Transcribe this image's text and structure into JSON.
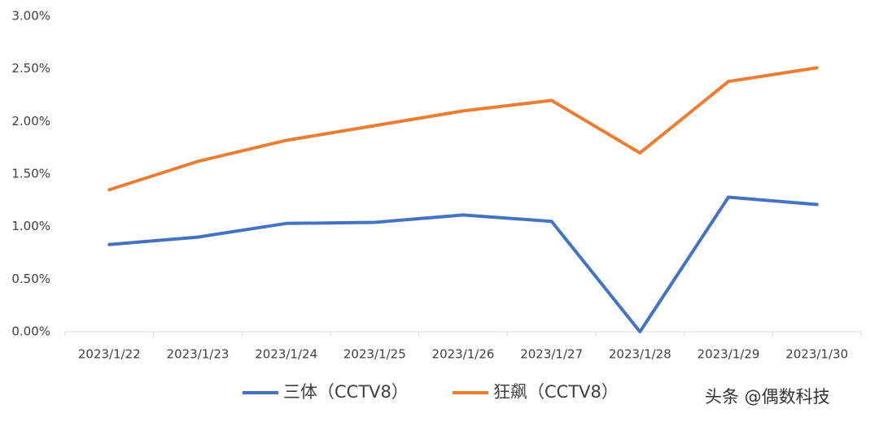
{
  "chart_data": {
    "type": "line",
    "categories": [
      "2023/1/22",
      "2023/1/23",
      "2023/1/24",
      "2023/1/25",
      "2023/1/26",
      "2023/1/27",
      "2023/1/28",
      "2023/1/29",
      "2023/1/30"
    ],
    "series": [
      {
        "name": "三体（CCTV8）",
        "color": "#4472c4",
        "values": [
          0.83,
          0.9,
          1.03,
          1.04,
          1.11,
          1.05,
          0,
          1.28,
          1.21
        ]
      },
      {
        "name": "狂飙（CCTV8）",
        "color": "#ed7d31",
        "values": [
          1.35,
          1.62,
          1.82,
          1.96,
          2.1,
          2.2,
          1.7,
          2.38,
          2.51
        ]
      }
    ],
    "ylim": [
      0,
      3
    ],
    "yticks": [
      {
        "value": 0,
        "label": "0.00%"
      },
      {
        "value": 0.5,
        "label": "0.50%"
      },
      {
        "value": 1,
        "label": "1.00%"
      },
      {
        "value": 1.5,
        "label": "1.50%"
      },
      {
        "value": 2,
        "label": "2.00%"
      },
      {
        "value": 2.5,
        "label": "2.50%"
      },
      {
        "value": 3,
        "label": "3.00%"
      }
    ],
    "grid": false,
    "legend": "bottom",
    "watermark": "头条 @偶数科技"
  }
}
